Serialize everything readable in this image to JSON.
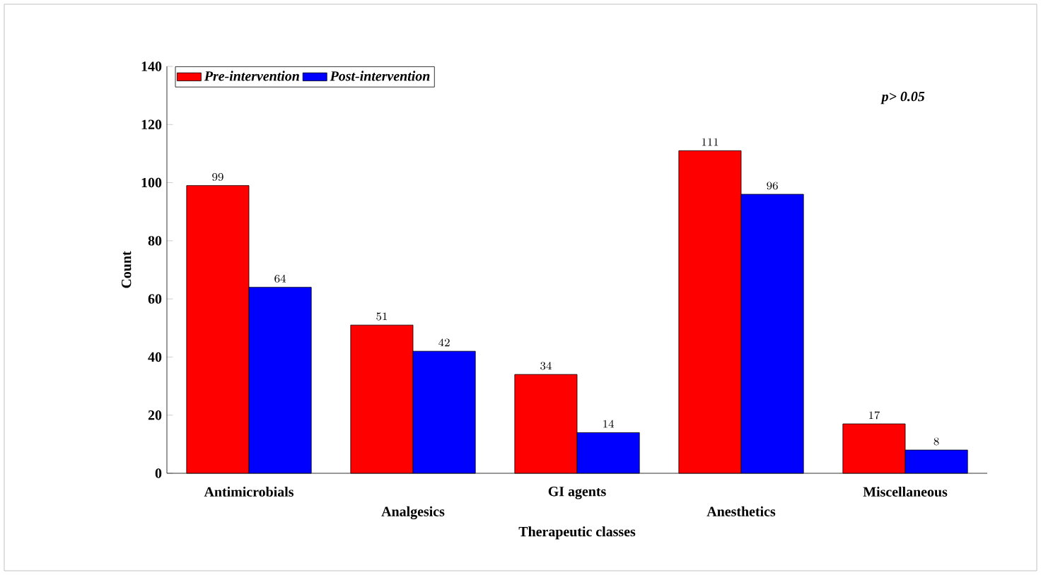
{
  "chart_data": {
    "type": "bar",
    "categories": [
      "Antimicrobials",
      "Analgesics",
      "GI agents",
      "Anesthetics",
      "Miscellaneous"
    ],
    "series": [
      {
        "name": "Pre-intervention",
        "color": "#ff0000",
        "values": [
          99,
          51,
          34,
          111,
          17
        ]
      },
      {
        "name": "Post-intervention",
        "color": "#0000ff",
        "values": [
          64,
          42,
          14,
          96,
          8
        ]
      }
    ],
    "xlabel": "Therapeutic classes",
    "ylabel": "Count",
    "ylim": [
      0,
      140
    ],
    "yticks": [
      0,
      20,
      40,
      60,
      80,
      100,
      120,
      140
    ],
    "data_labels": true,
    "legend": "top left",
    "annotations": [
      "p> 0.05"
    ]
  }
}
